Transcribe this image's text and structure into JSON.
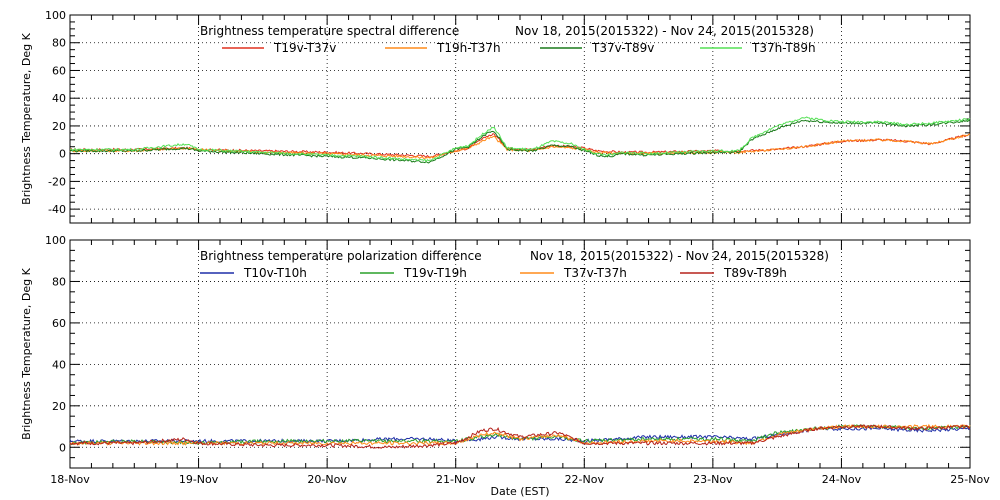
{
  "chart_data": [
    {
      "type": "line",
      "title": "Brightness temperature spectral difference",
      "date_range": "Nov 18, 2015(2015322) - Nov 24, 2015(2015328)",
      "ylabel": "Brightness Temperature, Deg K",
      "xlabel": "",
      "ylim": [
        -50,
        100
      ],
      "yticks": [
        -40,
        -20,
        0,
        20,
        40,
        60,
        80,
        100
      ],
      "xlim": [
        0,
        7
      ],
      "grid": true,
      "legend_position": "top",
      "series": [
        {
          "name": "T19v-T37v",
          "color": "#e0301e",
          "x": [
            0,
            0.5,
            0.9,
            1.0,
            1.5,
            2.0,
            2.3,
            2.6,
            2.8,
            3.0,
            3.1,
            3.25,
            3.3,
            3.4,
            3.6,
            3.75,
            3.9,
            4.0,
            4.1,
            4.3,
            4.5,
            5.0,
            5.2,
            5.5,
            5.7,
            6.0,
            6.3,
            6.5,
            6.7,
            7.0
          ],
          "y": [
            3,
            3,
            4,
            3,
            2,
            1,
            0,
            -1,
            -2,
            2,
            4,
            13,
            14,
            4,
            3,
            6,
            5,
            4,
            2,
            1,
            1,
            2,
            2,
            3,
            5,
            9,
            10,
            9,
            7,
            14
          ]
        },
        {
          "name": "T19h-T37h",
          "color": "#ff8c1a",
          "x": [
            0,
            0.5,
            0.9,
            1.0,
            1.5,
            2.0,
            2.3,
            2.6,
            2.8,
            3.0,
            3.1,
            3.25,
            3.3,
            3.4,
            3.6,
            3.75,
            3.9,
            4.0,
            4.1,
            4.3,
            4.5,
            5.0,
            5.2,
            5.5,
            5.7,
            6.0,
            6.3,
            6.5,
            6.7,
            7.0
          ],
          "y": [
            2,
            2,
            4,
            3,
            1,
            0,
            -1,
            -2,
            -3,
            2,
            4,
            11,
            12,
            3,
            2,
            5,
            4,
            3,
            1,
            0,
            0,
            1,
            1,
            3,
            5,
            9,
            10,
            9,
            7,
            14
          ]
        },
        {
          "name": "T37v-T89v",
          "color": "#1a7a1a",
          "x": [
            0,
            0.5,
            0.9,
            1.0,
            1.5,
            2.0,
            2.3,
            2.6,
            2.8,
            3.0,
            3.1,
            3.25,
            3.3,
            3.4,
            3.6,
            3.75,
            3.9,
            4.0,
            4.1,
            4.2,
            4.3,
            4.5,
            5.0,
            5.2,
            5.3,
            5.4,
            5.5,
            5.7,
            6.0,
            6.3,
            6.5,
            6.7,
            7.0
          ],
          "y": [
            2,
            2,
            4,
            2,
            0,
            -2,
            -3,
            -5,
            -6,
            3,
            5,
            15,
            16,
            3,
            2,
            6,
            5,
            2,
            -1,
            -2,
            0,
            -1,
            1,
            1,
            10,
            14,
            18,
            24,
            22,
            22,
            20,
            21,
            24
          ]
        },
        {
          "name": "T37h-T89h",
          "color": "#55e055",
          "x": [
            0,
            0.5,
            0.9,
            1.0,
            1.5,
            2.0,
            2.3,
            2.6,
            2.8,
            3.0,
            3.1,
            3.25,
            3.3,
            3.4,
            3.6,
            3.75,
            3.9,
            4.0,
            4.1,
            4.2,
            4.3,
            4.5,
            5.0,
            5.2,
            5.3,
            5.4,
            5.5,
            5.7,
            6.0,
            6.3,
            6.5,
            6.7,
            7.0
          ],
          "y": [
            3,
            3,
            7,
            3,
            1,
            -1,
            -2,
            -4,
            -5,
            4,
            6,
            17,
            19,
            4,
            3,
            9,
            7,
            3,
            0,
            -1,
            1,
            0,
            2,
            2,
            11,
            16,
            20,
            26,
            23,
            23,
            21,
            22,
            25
          ]
        }
      ]
    },
    {
      "type": "line",
      "title": "Brightness temperature polarization difference",
      "date_range": "Nov 18, 2015(2015322) - Nov 24, 2015(2015328)",
      "ylabel": "Brightness Temperature, Deg K",
      "xlabel": "Date (EST)",
      "ylim": [
        -10,
        100
      ],
      "yticks": [
        0,
        20,
        40,
        60,
        80,
        100
      ],
      "xlim": [
        0,
        7
      ],
      "xticks": [
        "18-Nov",
        "19-Nov",
        "20-Nov",
        "21-Nov",
        "22-Nov",
        "23-Nov",
        "24-Nov",
        "25-Nov"
      ],
      "grid": true,
      "legend_position": "top",
      "series": [
        {
          "name": "T10v-T10h",
          "color": "#1f2fa8",
          "x": [
            0,
            0.5,
            1.0,
            1.5,
            2.0,
            2.5,
            2.8,
            3.0,
            3.2,
            3.3,
            3.5,
            3.8,
            4.0,
            4.5,
            5.0,
            5.3,
            5.5,
            5.8,
            6.0,
            6.3,
            6.6,
            7.0
          ],
          "y": [
            3,
            3,
            3,
            3,
            3,
            4,
            4,
            3,
            4,
            5,
            4,
            4,
            3,
            5,
            5,
            4,
            6,
            9,
            9,
            9,
            8,
            9
          ]
        },
        {
          "name": "T19v-T19h",
          "color": "#2aa02a",
          "x": [
            0,
            0.5,
            1.0,
            1.5,
            2.0,
            2.5,
            2.8,
            3.0,
            3.2,
            3.3,
            3.5,
            3.8,
            4.0,
            4.5,
            5.0,
            5.3,
            5.5,
            5.8,
            6.0,
            6.3,
            6.6,
            7.0
          ],
          "y": [
            2,
            3,
            2,
            3,
            3,
            3,
            3,
            3,
            5,
            6,
            4,
            5,
            3,
            4,
            4,
            3,
            7,
            9,
            10,
            10,
            9,
            10
          ]
        },
        {
          "name": "T37v-T37h",
          "color": "#ff8c1a",
          "x": [
            0,
            0.5,
            1.0,
            1.5,
            2.0,
            2.5,
            2.8,
            3.0,
            3.2,
            3.3,
            3.5,
            3.8,
            4.0,
            4.5,
            5.0,
            5.3,
            5.5,
            5.8,
            6.0,
            6.3,
            6.6,
            7.0
          ],
          "y": [
            2,
            2,
            2,
            2,
            2,
            2,
            2,
            2,
            6,
            7,
            4,
            6,
            2,
            3,
            3,
            2,
            6,
            9,
            10,
            10,
            10,
            10
          ]
        },
        {
          "name": "T89v-T89h",
          "color": "#b5221b",
          "x": [
            0,
            0.5,
            0.9,
            1.0,
            1.5,
            2.0,
            2.5,
            2.8,
            3.0,
            3.2,
            3.3,
            3.5,
            3.8,
            4.0,
            4.5,
            5.0,
            5.3,
            5.5,
            5.8,
            6.0,
            6.3,
            6.6,
            7.0
          ],
          "y": [
            2,
            2,
            4,
            2,
            1,
            1,
            0,
            1,
            2,
            8,
            9,
            5,
            7,
            2,
            2,
            2,
            2,
            5,
            9,
            10,
            10,
            9,
            10
          ]
        }
      ]
    }
  ]
}
